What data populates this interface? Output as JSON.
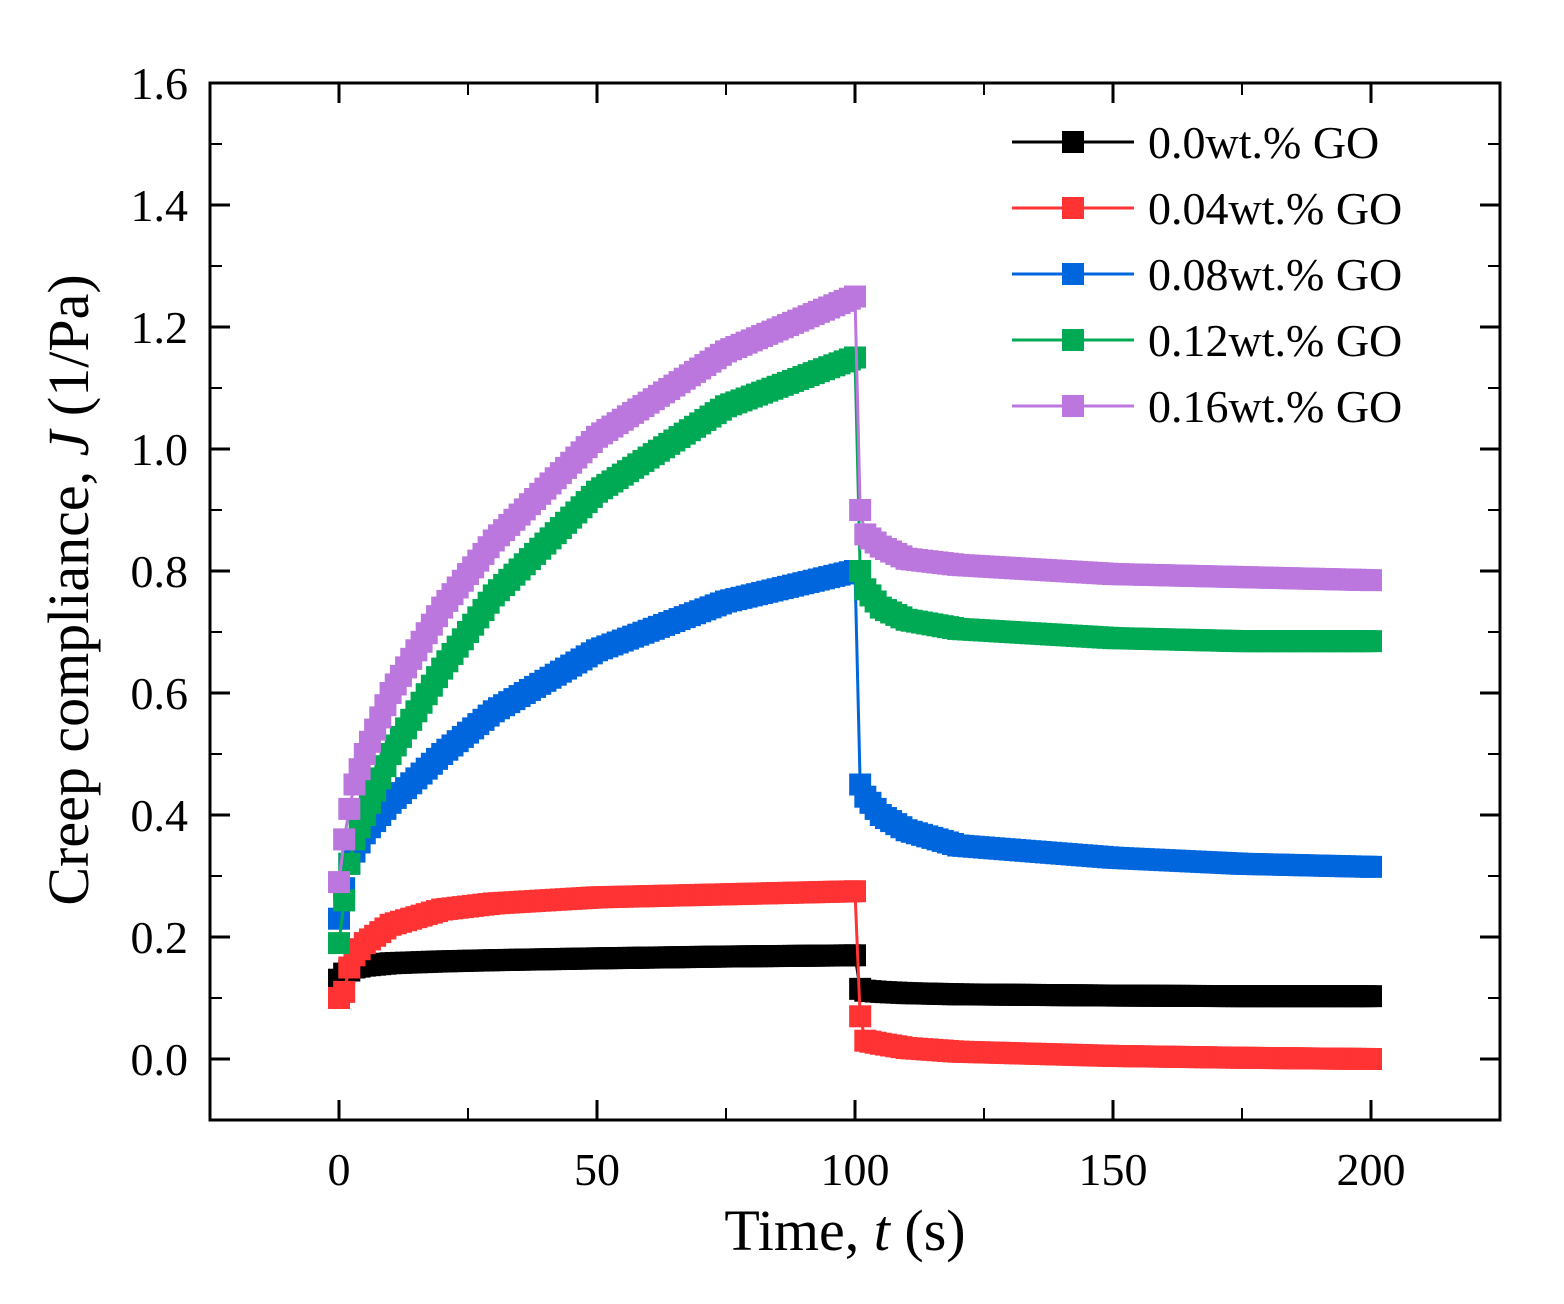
{
  "chart_data": {
    "type": "scatter",
    "xlabel": {
      "pre": "Time, ",
      "var": "t",
      "post": " (s)"
    },
    "ylabel": {
      "pre": "Creep compliance, ",
      "var": "J",
      "post": " (1/Pa)"
    },
    "xlim": [
      -25,
      225
    ],
    "ylim": [
      -0.1,
      1.6
    ],
    "xticks": [
      0,
      50,
      100,
      150,
      200
    ],
    "xtick_labels": [
      "0",
      "50",
      "100",
      "150",
      "200"
    ],
    "yticks": [
      0.0,
      0.2,
      0.4,
      0.6,
      0.8,
      1.0,
      1.2,
      1.4,
      1.6
    ],
    "ytick_labels": [
      "0.0",
      "0.2",
      "0.4",
      "0.6",
      "0.8",
      "1.0",
      "1.2",
      "1.4",
      "1.6"
    ],
    "legend_position": "top-right",
    "grid": false,
    "series": [
      {
        "name": "0.0wt.% GO",
        "color": "#000000",
        "x": [
          0,
          1,
          2,
          3,
          5,
          10,
          20,
          30,
          50,
          75,
          100,
          101,
          102,
          105,
          110,
          120,
          150,
          175,
          200
        ],
        "y": [
          0.13,
          0.14,
          0.145,
          0.15,
          0.153,
          0.157,
          0.16,
          0.162,
          0.165,
          0.168,
          0.17,
          0.115,
          0.112,
          0.11,
          0.108,
          0.106,
          0.104,
          0.103,
          0.103
        ]
      },
      {
        "name": "0.04wt.% GO",
        "color": "#ff3333",
        "x": [
          0,
          1,
          2,
          3,
          5,
          10,
          20,
          30,
          50,
          75,
          100,
          101,
          102,
          105,
          110,
          120,
          150,
          175,
          200
        ],
        "y": [
          0.1,
          0.11,
          0.15,
          0.17,
          0.19,
          0.22,
          0.245,
          0.255,
          0.265,
          0.27,
          0.275,
          0.07,
          0.03,
          0.025,
          0.018,
          0.012,
          0.005,
          0.002,
          0.0
        ]
      },
      {
        "name": "0.08wt.% GO",
        "color": "#0066dd",
        "x": [
          0,
          1,
          2,
          3,
          5,
          10,
          20,
          30,
          50,
          75,
          100,
          101,
          102,
          105,
          110,
          120,
          150,
          175,
          200
        ],
        "y": [
          0.23,
          0.28,
          0.32,
          0.34,
          0.37,
          0.42,
          0.5,
          0.57,
          0.67,
          0.75,
          0.8,
          0.45,
          0.43,
          0.4,
          0.375,
          0.35,
          0.33,
          0.32,
          0.315
        ]
      },
      {
        "name": "0.12wt.% GO",
        "color": "#00aa55",
        "x": [
          0,
          1,
          2,
          3,
          5,
          10,
          20,
          30,
          50,
          75,
          100,
          101,
          102,
          105,
          110,
          120,
          150,
          175,
          200
        ],
        "y": [
          0.19,
          0.26,
          0.32,
          0.36,
          0.4,
          0.5,
          0.64,
          0.76,
          0.93,
          1.07,
          1.15,
          0.8,
          0.77,
          0.74,
          0.72,
          0.705,
          0.69,
          0.685,
          0.685
        ]
      },
      {
        "name": "0.16wt.% GO",
        "color": "#bb77dd",
        "x": [
          0,
          1,
          2,
          3,
          5,
          10,
          20,
          30,
          50,
          75,
          100,
          101,
          102,
          105,
          110,
          120,
          150,
          175,
          200
        ],
        "y": [
          0.29,
          0.36,
          0.41,
          0.45,
          0.5,
          0.6,
          0.74,
          0.85,
          1.02,
          1.16,
          1.25,
          0.9,
          0.86,
          0.84,
          0.82,
          0.81,
          0.795,
          0.79,
          0.785
        ]
      }
    ]
  }
}
